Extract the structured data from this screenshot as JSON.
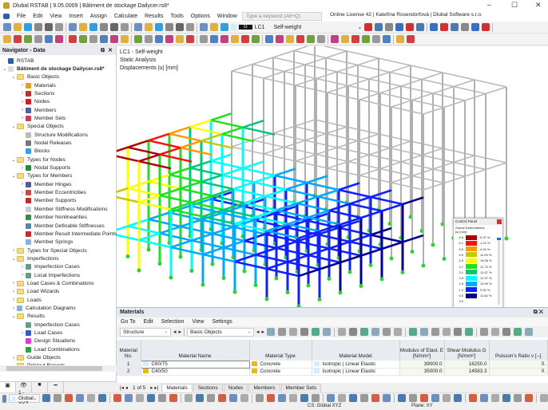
{
  "window": {
    "title": "Dlubal RSTAB | 9.05.0009 | Bâtiment de stockage Dailycer.rs8*",
    "minimize": "–",
    "maximize": "☐",
    "close": "✕"
  },
  "menu": [
    "File",
    "Edit",
    "View",
    "Insert",
    "Assign",
    "Calculate",
    "Results",
    "Tools",
    "Options",
    "Window"
  ],
  "search": {
    "placeholder": "Type a keyword (Alt+Q)"
  },
  "license": "Online License 42 | Kateřina Rosendorfová | Dlubal Software s.r.o.",
  "loadcase": {
    "badge": "G",
    "id": "LC1",
    "name": "Self-weight"
  },
  "navigator": {
    "title": "Navigator - Data",
    "items": [
      {
        "label": "RSTAB",
        "level": 0,
        "chev": "",
        "icon": "rstab-icon",
        "color": "#3060a0"
      },
      {
        "label": "Bâtiment de stockage Dailycer.rs8*",
        "level": 0,
        "chev": "v",
        "icon": "file-icon",
        "color": "#ddd",
        "bold": true
      },
      {
        "label": "Basic Objects",
        "level": 1,
        "chev": "v",
        "icon": "folder-icon",
        "folder": true
      },
      {
        "label": "Materials",
        "level": 2,
        "chev": ">",
        "icon": "materials-icon",
        "color": "#e0a020"
      },
      {
        "label": "Sections",
        "level": 2,
        "chev": ">",
        "icon": "sections-icon",
        "color": "#c03030"
      },
      {
        "label": "Nodes",
        "level": 2,
        "chev": ">",
        "icon": "nodes-icon",
        "color": "#d02020"
      },
      {
        "label": "Members",
        "level": 2,
        "chev": ">",
        "icon": "members-icon",
        "color": "#5060a0"
      },
      {
        "label": "Member Sets",
        "level": 2,
        "chev": ">",
        "icon": "member-sets-icon",
        "color": "#c04060"
      },
      {
        "label": "Special Objects",
        "level": 1,
        "chev": "v",
        "icon": "folder-icon",
        "folder": true
      },
      {
        "label": "Structure Modifications",
        "level": 2,
        "chev": "",
        "icon": "structure-modifications-icon",
        "color": "#bbb"
      },
      {
        "label": "Nodal Releases",
        "level": 2,
        "chev": "",
        "icon": "nodal-releases-icon",
        "color": "#777"
      },
      {
        "label": "Blocks",
        "level": 2,
        "chev": "",
        "icon": "blocks-icon",
        "color": "#3aa0e0"
      },
      {
        "label": "Types for Nodes",
        "level": 1,
        "chev": "v",
        "icon": "folder-icon",
        "folder": true
      },
      {
        "label": "Nodal Supports",
        "level": 2,
        "chev": ">",
        "icon": "nodal-supports-icon",
        "color": "#2a8a3a"
      },
      {
        "label": "Types for Members",
        "level": 1,
        "chev": "v",
        "icon": "folder-icon",
        "folder": true
      },
      {
        "label": "Member Hinges",
        "level": 2,
        "chev": ">",
        "icon": "member-hinges-icon",
        "color": "#506090"
      },
      {
        "label": "Member Eccentricities",
        "level": 2,
        "chev": ">",
        "icon": "member-eccentricities-icon",
        "color": "#c05050"
      },
      {
        "label": "Member Supports",
        "level": 2,
        "chev": "",
        "icon": "member-supports-icon",
        "color": "#c03030"
      },
      {
        "label": "Member Stiffness Modifications",
        "level": 2,
        "chev": "",
        "icon": "member-stiffness-icon",
        "color": "#ccc"
      },
      {
        "label": "Member Nonlinearities",
        "level": 2,
        "chev": "",
        "icon": "member-nonlinearities-icon",
        "color": "#3a8a4a"
      },
      {
        "label": "Member Definable Stiffnesses",
        "level": 2,
        "chev": "",
        "icon": "member-definable-stiffness-icon",
        "color": "#6080b0"
      },
      {
        "label": "Member Result Intermediate Points",
        "level": 2,
        "chev": "",
        "icon": "member-result-points-icon",
        "color": "#c03030"
      },
      {
        "label": "Member Springs",
        "level": 2,
        "chev": "",
        "icon": "member-springs-icon",
        "color": "#8ab0e0"
      },
      {
        "label": "Types for Special Objects",
        "level": 1,
        "chev": ">",
        "icon": "folder-icon",
        "folder": true
      },
      {
        "label": "Imperfections",
        "level": 1,
        "chev": "v",
        "icon": "folder-icon",
        "folder": true
      },
      {
        "label": "Imperfection Cases",
        "level": 2,
        "chev": ">",
        "icon": "imperfection-cases-icon",
        "color": "#6a9a8a"
      },
      {
        "label": "Local Imperfections",
        "level": 2,
        "chev": ">",
        "icon": "local-imperfections-icon",
        "color": "#6a9a8a"
      },
      {
        "label": "Load Cases & Combinations",
        "level": 1,
        "chev": ">",
        "icon": "folder-icon",
        "folder": true
      },
      {
        "label": "Load Wizards",
        "level": 1,
        "chev": ">",
        "icon": "folder-icon",
        "folder": true
      },
      {
        "label": "Loads",
        "level": 1,
        "chev": ">",
        "icon": "folder-icon",
        "folder": true
      },
      {
        "label": "Calculation Diagrams",
        "level": 1,
        "chev": ">",
        "icon": "calculation-diagrams-icon",
        "color": "#8ab0d0"
      },
      {
        "label": "Results",
        "level": 1,
        "chev": "v",
        "icon": "folder-icon",
        "folder": true
      },
      {
        "label": "Imperfection Cases",
        "level": 2,
        "chev": "",
        "icon": "imperfection-cases-icon",
        "color": "#6a9a8a"
      },
      {
        "label": "Load Cases",
        "level": 2,
        "chev": ">",
        "icon": "load-cases-icon",
        "color": "#3060c0"
      },
      {
        "label": "Design Situations",
        "level": 2,
        "chev": "",
        "icon": "design-situations-icon",
        "color": "#d040d0"
      },
      {
        "label": "Load Combinations",
        "level": 2,
        "chev": "",
        "icon": "load-combinations-icon",
        "color": "#30a040"
      },
      {
        "label": "Guide Objects",
        "level": 1,
        "chev": ">",
        "icon": "folder-icon",
        "folder": true
      },
      {
        "label": "Printout Reports",
        "level": 1,
        "chev": "",
        "icon": "folder-icon",
        "folder": true
      }
    ]
  },
  "viewport": {
    "lines": [
      "LC1 - Self-weight",
      "Static Analysis",
      "Displacements |u| [mm]"
    ]
  },
  "control_panel": {
    "title": "Control Panel",
    "subtitle": "Global Deformations",
    "unit": "|u| [mm]",
    "legend": [
      {
        "value": "6.8",
        "color": "#b00000",
        "percent": "0.37 %"
      },
      {
        "value": "6.1",
        "color": "#ff1010",
        "percent": "1.24 %"
      },
      {
        "value": "5.5",
        "color": "#ff9a00",
        "percent": "4.94 %"
      },
      {
        "value": "4.9",
        "color": "#c8c800",
        "percent": "11.09 %"
      },
      {
        "value": "4.3",
        "color": "#ffff00",
        "percent": "14.06 %"
      },
      {
        "value": "3.7",
        "color": "#20e020",
        "percent": "11.73 %"
      },
      {
        "value": "3.1",
        "color": "#00c878",
        "percent": "12.07 %"
      },
      {
        "value": "2.5",
        "color": "#00ffff",
        "percent": "12.37 %"
      },
      {
        "value": "1.8",
        "color": "#00a8ff",
        "percent": "10.99 %"
      },
      {
        "value": "1.2",
        "color": "#1020ff",
        "percent": "9.30 %"
      },
      {
        "value": "0.6",
        "color": "#000090",
        "percent": "11.84 %"
      },
      {
        "value": "0.0",
        "color": "",
        "percent": ""
      }
    ]
  },
  "materials": {
    "title": "Materials",
    "menu": [
      "Go To",
      "Edit",
      "Selection",
      "View",
      "Settings"
    ],
    "structure_dropdown": "Structure",
    "objects_dropdown": "Basic Objects",
    "columns": [
      "Material No.",
      "Material Name",
      "Material Type",
      "Material Model",
      "Modulus of Elast. E [N/mm²]",
      "Shear Modulus G [N/mm²]",
      "Poisson's Ratio v [--]"
    ],
    "rows": [
      {
        "no": "1",
        "name": "C60/75",
        "name_color": "#cfeffc",
        "type": "Concrete",
        "type_color": "#f0b800",
        "model": "Isotropic | Linear Elastic",
        "e": "39000.0",
        "g": "16250.0",
        "v": "0."
      },
      {
        "no": "2",
        "name": "C40/50",
        "name_color": "#f0b800",
        "type": "Concrete",
        "type_color": "#f0b800",
        "model": "Isotropic | Linear Elastic",
        "e": "35000.0",
        "g": "14583.3",
        "v": "0."
      }
    ],
    "pager": "1 of 5",
    "tabs": [
      "Materials",
      "Sections",
      "Nodes",
      "Members",
      "Member Sets"
    ]
  },
  "bottom": {
    "coord_system": "1 - Global XYZ"
  },
  "status": {
    "cs": "CS: Global XYZ",
    "plane": "Plane: XY"
  }
}
